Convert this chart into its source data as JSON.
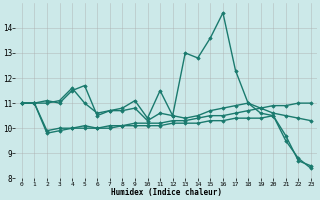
{
  "title": "",
  "xlabel": "Humidex (Indice chaleur)",
  "ylabel": "",
  "bg_color": "#cce9e9",
  "grid_color": "#aaaaaa",
  "line_color": "#1a7a6e",
  "xlim": [
    -0.5,
    23.5
  ],
  "ylim": [
    8,
    15
  ],
  "yticks": [
    8,
    9,
    10,
    11,
    12,
    13,
    14
  ],
  "xticks": [
    0,
    1,
    2,
    3,
    4,
    5,
    6,
    7,
    8,
    9,
    10,
    11,
    12,
    13,
    14,
    15,
    16,
    17,
    18,
    19,
    20,
    21,
    22,
    23
  ],
  "series": [
    {
      "x": [
        0,
        1,
        2,
        3,
        4,
        5,
        6,
        7,
        8,
        9,
        10,
        11,
        12,
        13,
        14,
        15,
        16,
        17,
        18,
        19,
        20,
        21,
        22,
        23
      ],
      "y": [
        11.0,
        11.0,
        11.1,
        11.0,
        11.5,
        11.7,
        10.5,
        10.7,
        10.8,
        11.1,
        10.4,
        11.5,
        10.5,
        13.0,
        12.8,
        13.6,
        14.6,
        12.3,
        11.0,
        10.6,
        10.5,
        9.7,
        8.7,
        8.5
      ],
      "linewidth": 1.0
    },
    {
      "x": [
        0,
        1,
        2,
        3,
        4,
        5,
        6,
        7,
        8,
        9,
        10,
        11,
        12,
        13,
        14,
        15,
        16,
        17,
        18,
        19,
        20,
        21,
        22,
        23
      ],
      "y": [
        11.0,
        11.0,
        11.0,
        11.1,
        11.6,
        11.0,
        10.6,
        10.7,
        10.7,
        10.8,
        10.3,
        10.6,
        10.5,
        10.4,
        10.5,
        10.7,
        10.8,
        10.9,
        11.0,
        10.8,
        10.6,
        10.5,
        10.4,
        10.3
      ],
      "linewidth": 1.0
    },
    {
      "x": [
        0,
        1,
        2,
        3,
        4,
        5,
        6,
        7,
        8,
        9,
        10,
        11,
        12,
        13,
        14,
        15,
        16,
        17,
        18,
        19,
        20,
        21,
        22,
        23
      ],
      "y": [
        11.0,
        11.0,
        9.9,
        10.0,
        10.0,
        10.1,
        10.0,
        10.1,
        10.1,
        10.2,
        10.2,
        10.2,
        10.3,
        10.3,
        10.4,
        10.5,
        10.5,
        10.6,
        10.7,
        10.8,
        10.9,
        10.9,
        11.0,
        11.0
      ],
      "linewidth": 1.0
    },
    {
      "x": [
        0,
        1,
        2,
        3,
        4,
        5,
        6,
        7,
        8,
        9,
        10,
        11,
        12,
        13,
        14,
        15,
        16,
        17,
        18,
        19,
        20,
        21,
        22,
        23
      ],
      "y": [
        11.0,
        11.0,
        9.8,
        9.9,
        10.0,
        10.0,
        10.0,
        10.0,
        10.1,
        10.1,
        10.1,
        10.1,
        10.2,
        10.2,
        10.2,
        10.3,
        10.3,
        10.4,
        10.4,
        10.4,
        10.5,
        9.5,
        8.8,
        8.4
      ],
      "linewidth": 1.0
    }
  ]
}
